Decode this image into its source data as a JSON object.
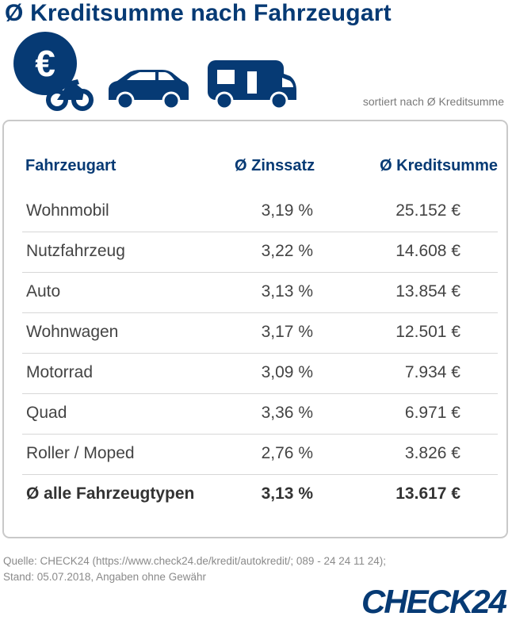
{
  "header": {
    "title": "Ø Kreditsumme nach Fahrzeugart",
    "subtitle": "sortiert nach Ø Kreditsumme"
  },
  "icons": [
    "euro-coin-icon",
    "motorbike-icon",
    "car-icon",
    "camper-van-icon"
  ],
  "colors": {
    "brand": "#063a74",
    "border": "#c9c9c9",
    "text": "#444444"
  },
  "chart_data": {
    "type": "table",
    "columns": [
      "Fahrzeugart",
      "Ø Zinssatz",
      "Ø Kreditsumme"
    ],
    "rows": [
      [
        "Wohnmobil",
        "3,19 %",
        "25.152 €"
      ],
      [
        "Nutzfahrzeug",
        "3,22 %",
        "14.608 €"
      ],
      [
        "Auto",
        "3,13 %",
        "13.854 €"
      ],
      [
        "Wohnwagen",
        "3,17 %",
        "12.501 €"
      ],
      [
        "Motorrad",
        "3,09 %",
        "7.934 €"
      ],
      [
        "Quad",
        "3,36 %",
        "6.971 €"
      ],
      [
        "Roller / Moped",
        "2,76 %",
        "3.826 €"
      ],
      [
        "Ø alle Fahrzeugtypen",
        "3,13 %",
        "13.617 €"
      ]
    ]
  },
  "footer": {
    "line1": "Quelle: CHECK24 (https://www.check24.de/kredit/autokredit/; 089 - 24 24 11 24);",
    "line2": "Stand: 05.07.2018, Angaben ohne Gewähr"
  },
  "logo": {
    "text": "CHECK24"
  }
}
